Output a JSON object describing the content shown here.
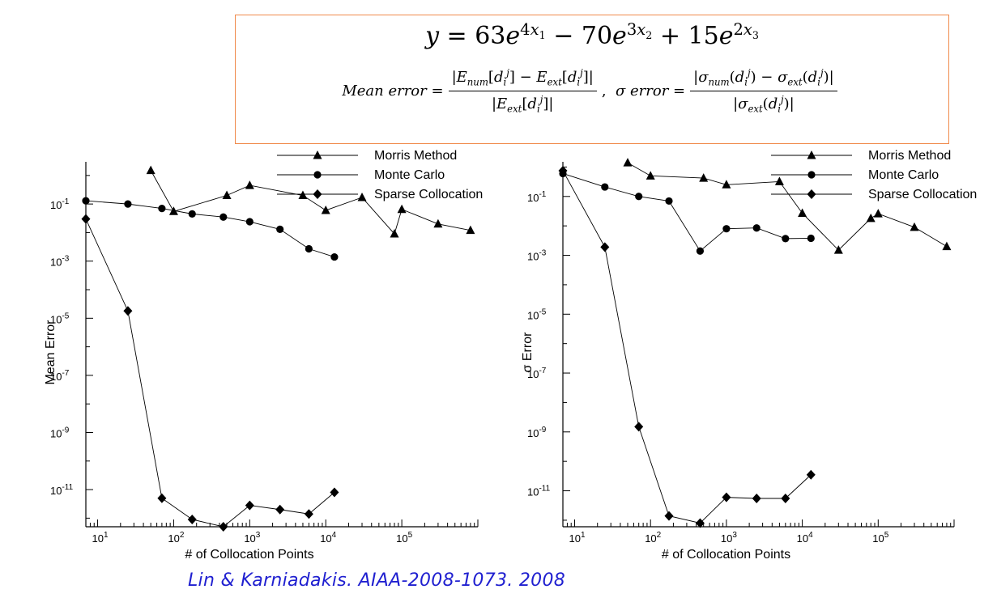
{
  "formula": {
    "line1": "y = 63e^{4x1} − 70e^{3x2} + 15e^{2x3}",
    "mean_error_def": "Mean error = |E_num[d_i^j] − E_ext[d_i^j]| / |E_ext[d_i^j]|",
    "sigma_error_def": "σ error = |σ_num(d_i^j) − σ_ext(d_i^j)| / |σ_ext(d_i^j)|"
  },
  "citation": "Lin & Karniadakis. AIAA-2008-1073. 2008",
  "colors": {
    "box_border": "#f08a4b",
    "citation": "#1f1fd0",
    "series": "#000000"
  },
  "chart_data": [
    {
      "type": "line",
      "title": "",
      "xlabel": "# of Collocation Points",
      "ylabel": "Mean Error",
      "xscale": "log",
      "yscale": "log",
      "xlim": [
        7,
        1000000
      ],
      "ylim": [
        5e-13,
        3
      ],
      "xticks": [
        {
          "v": 10,
          "t": "10",
          "e": "1"
        },
        {
          "v": 100,
          "t": "10",
          "e": "2"
        },
        {
          "v": 1000,
          "t": "10",
          "e": "3"
        },
        {
          "v": 10000,
          "t": "10",
          "e": "4"
        },
        {
          "v": 100000,
          "t": "10",
          "e": "5"
        }
      ],
      "yticks": [
        {
          "v": 0.1,
          "t": "10",
          "e": "-1"
        },
        {
          "v": 0.001,
          "t": "10",
          "e": "-3"
        },
        {
          "v": 1e-05,
          "t": "10",
          "e": "-5"
        },
        {
          "v": 1e-07,
          "t": "10",
          "e": "-7"
        },
        {
          "v": 1e-09,
          "t": "10",
          "e": "-9"
        },
        {
          "v": 1e-11,
          "t": "10",
          "e": "-11"
        }
      ],
      "legend": "top-right",
      "series": [
        {
          "name": "Morris Method",
          "marker": "triangle",
          "x": [
            50,
            100,
            500,
            1000,
            5000,
            10000,
            30000,
            80000,
            100000,
            300000,
            800000
          ],
          "y": [
            1.5,
            0.055,
            0.2,
            0.45,
            0.2,
            0.06,
            0.17,
            0.009,
            0.065,
            0.02,
            0.012
          ]
        },
        {
          "name": "Monte Carlo",
          "marker": "circle",
          "x": [
            7,
            25,
            70,
            175,
            450,
            1000,
            2500,
            6000,
            13000
          ],
          "y": [
            0.13,
            0.1,
            0.07,
            0.045,
            0.035,
            0.024,
            0.013,
            0.0027,
            0.0014
          ]
        },
        {
          "name": "Sparse Collocation",
          "marker": "diamond",
          "x": [
            7,
            25,
            70,
            175,
            450,
            1000,
            2500,
            6000,
            13000
          ],
          "y": [
            0.03,
            1.8e-05,
            5e-12,
            9e-13,
            5e-13,
            2.8e-12,
            2e-12,
            1.4e-12,
            8e-12
          ]
        }
      ]
    },
    {
      "type": "line",
      "title": "",
      "xlabel": "# of Collocation Points",
      "ylabel": "σ Error",
      "xscale": "log",
      "yscale": "log",
      "xlim": [
        7,
        1000000
      ],
      "ylim": [
        6e-13,
        1.5
      ],
      "xticks": [
        {
          "v": 10,
          "t": "10",
          "e": "1"
        },
        {
          "v": 100,
          "t": "10",
          "e": "2"
        },
        {
          "v": 1000,
          "t": "10",
          "e": "3"
        },
        {
          "v": 10000,
          "t": "10",
          "e": "4"
        },
        {
          "v": 100000,
          "t": "10",
          "e": "5"
        }
      ],
      "yticks": [
        {
          "v": 0.1,
          "t": "10",
          "e": "-1"
        },
        {
          "v": 0.001,
          "t": "10",
          "e": "-3"
        },
        {
          "v": 1e-05,
          "t": "10",
          "e": "-5"
        },
        {
          "v": 1e-07,
          "t": "10",
          "e": "-7"
        },
        {
          "v": 1e-09,
          "t": "10",
          "e": "-9"
        },
        {
          "v": 1e-11,
          "t": "10",
          "e": "-11"
        }
      ],
      "legend": "top-right",
      "series": [
        {
          "name": "Morris Method",
          "marker": "triangle",
          "x": [
            50,
            100,
            500,
            1000,
            5000,
            10000,
            30000,
            80000,
            100000,
            300000,
            800000
          ],
          "y": [
            1.4,
            0.5,
            0.42,
            0.25,
            0.32,
            0.027,
            0.0015,
            0.018,
            0.026,
            0.009,
            0.002
          ]
        },
        {
          "name": "Monte Carlo",
          "marker": "circle",
          "x": [
            7,
            25,
            70,
            175,
            450,
            1000,
            2500,
            6000,
            13000
          ],
          "y": [
            0.6,
            0.21,
            0.1,
            0.07,
            0.0014,
            0.008,
            0.0085,
            0.0037,
            0.0038
          ]
        },
        {
          "name": "Sparse Collocation",
          "marker": "diamond",
          "x": [
            7,
            25,
            70,
            175,
            450,
            1000,
            2500,
            6000,
            13000
          ],
          "y": [
            0.75,
            0.0019,
            1.5e-09,
            1.4e-12,
            8e-13,
            6e-12,
            5.5e-12,
            5.5e-12,
            3.5e-11
          ]
        }
      ]
    }
  ]
}
